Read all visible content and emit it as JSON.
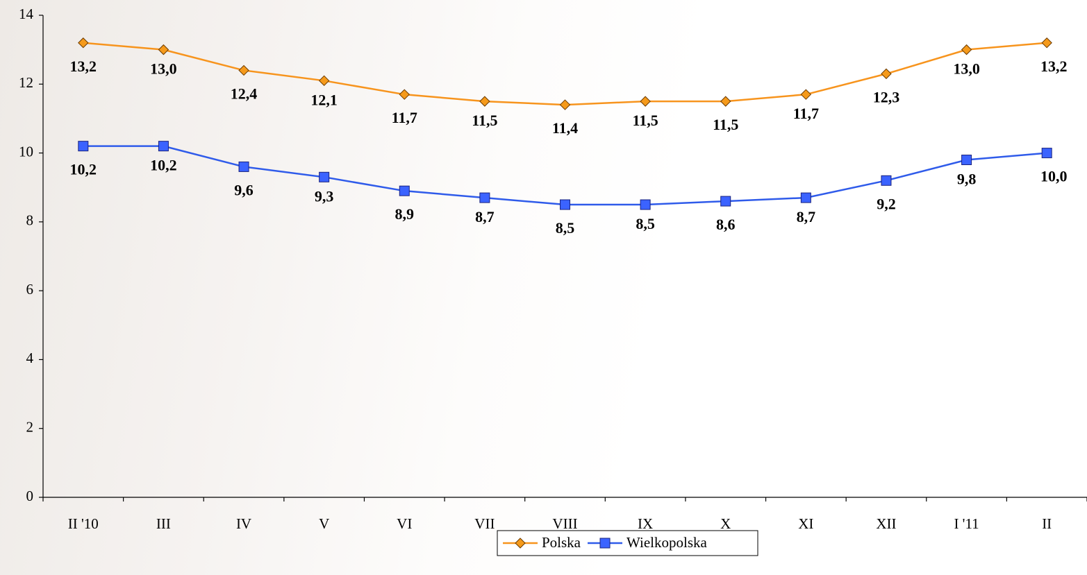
{
  "chart_data": {
    "type": "line",
    "categories": [
      "II '10",
      "III",
      "IV",
      "V",
      "VI",
      "VII",
      "VIII",
      "IX",
      "X",
      "XI",
      "XII",
      "I '11",
      "II"
    ],
    "series": [
      {
        "name": "Polska",
        "color": "#f7941d",
        "marker_color": "#f59a1b",
        "values": [
          13.2,
          13.0,
          12.4,
          12.1,
          11.7,
          11.5,
          11.4,
          11.5,
          11.5,
          11.7,
          12.3,
          13.0,
          13.2
        ],
        "value_labels": [
          "13,2",
          "13,0",
          "12,4",
          "12,1",
          "11,7",
          "11,5",
          "11,4",
          "11,5",
          "11,5",
          "11,7",
          "12,3",
          "13,0",
          "13,2"
        ]
      },
      {
        "name": "Wielkopolska",
        "color": "#2f5bea",
        "marker_color": "#3b63ff",
        "values": [
          10.2,
          10.2,
          9.6,
          9.3,
          8.9,
          8.7,
          8.5,
          8.5,
          8.6,
          8.7,
          9.2,
          9.8,
          10.0
        ],
        "value_labels": [
          "10,2",
          "10,2",
          "9,6",
          "9,3",
          "8,9",
          "8,7",
          "8,5",
          "8,5",
          "8,6",
          "8,7",
          "9,2",
          "9,8",
          "10,0"
        ]
      }
    ],
    "ylim": [
      0,
      14
    ],
    "yticks": [
      0,
      2,
      4,
      6,
      8,
      10,
      12,
      14
    ],
    "grid": false,
    "legend": "bottom"
  }
}
